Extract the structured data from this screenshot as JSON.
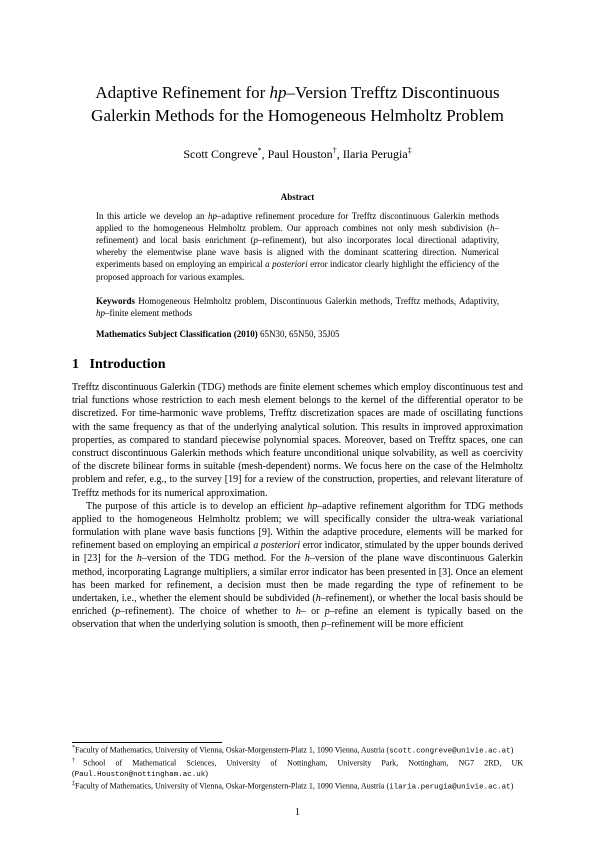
{
  "title_line1_a": "Adaptive Refinement for ",
  "title_line1_b": "hp",
  "title_line1_c": "–Version Trefftz Discontinuous",
  "title_line2": "Galerkin Methods for the Homogeneous Helmholtz Problem",
  "author1": "Scott Congreve",
  "author1_mark": "*",
  "author2": "Paul Houston",
  "author2_mark": "†",
  "author3": "Ilaria Perugia",
  "author3_mark": "‡",
  "abstract_head": "Abstract",
  "abstract_p1_a": "In this article we develop an ",
  "abstract_p1_b": "hp",
  "abstract_p1_c": "–adaptive refinement procedure for Trefftz discontinuous Galerkin methods applied to the homogeneous Helmholtz problem. Our approach combines not only mesh subdivision (",
  "abstract_p1_d": "h",
  "abstract_p1_e": "–refinement) and local basis enrichment (",
  "abstract_p1_f": "p",
  "abstract_p1_g": "–refinement), but also incorporates local directional adaptivity, whereby the elementwise plane wave basis is aligned with the dominant scattering direction. Numerical experiments based on employing an empirical ",
  "abstract_p1_h": "a posteriori",
  "abstract_p1_i": " error indicator clearly highlight the efficiency of the proposed approach for various examples.",
  "keywords_label": "Keywords",
  "keywords_text_a": "   Homogeneous Helmholtz problem, Discontinuous Galerkin methods, Trefftz methods, Adaptivity, ",
  "keywords_text_b": "hp",
  "keywords_text_c": "–finite element methods",
  "msc_label": "Mathematics Subject Classification (2010)",
  "msc_text": "   65N30, 65N50, 35J05",
  "section_num": "1",
  "section_title": "Introduction",
  "body_p1": "Trefftz discontinuous Galerkin (TDG) methods are finite element schemes which employ discontinuous test and trial functions whose restriction to each mesh element belongs to the kernel of the differential operator to be discretized. For time-harmonic wave problems, Trefftz discretization spaces are made of oscillating functions with the same frequency as that of the underlying analytical solution. This results in improved approximation properties, as compared to standard piecewise polynomial spaces. Moreover, based on Trefftz spaces, one can construct discontinuous Galerkin methods which feature unconditional unique solvability, as well as coercivity of the discrete bilinear forms in suitable (mesh-dependent) norms. We focus here on the case of the Helmholtz problem and refer, e.g., to the survey [19] for a review of the construction, properties, and relevant literature of Trefftz methods for its numerical approximation.",
  "body_p2_a": "The purpose of this article is to develop an efficient ",
  "body_p2_b": "hp",
  "body_p2_c": "–adaptive refinement algorithm for TDG methods applied to the homogeneous Helmholtz problem; we will specifically consider the ultra-weak variational formulation with plane wave basis functions [9]. Within the adaptive procedure, elements will be marked for refinement based on employing an empirical ",
  "body_p2_d": "a posteriori",
  "body_p2_e": " error indicator, stimulated by the upper bounds derived in [23] for the ",
  "body_p2_f": "h",
  "body_p2_g": "–version of the TDG method. For the ",
  "body_p2_h": "h",
  "body_p2_i": "–version of the plane wave discontinuous Galerkin method, incorporating Lagrange multipliers, a similar error indicator has been presented in [3]. Once an element has been marked for refinement, a decision must then be made regarding the type of refinement to be undertaken, i.e., whether the element should be subdivided (",
  "body_p2_j": "h",
  "body_p2_k": "–refinement), or whether the local basis should be enriched (",
  "body_p2_l": "p",
  "body_p2_m": "–refinement). The choice of whether to ",
  "body_p2_n": "h",
  "body_p2_o": "– or ",
  "body_p2_p": "p",
  "body_p2_q": "–refine an element is typically based on the observation that when the underlying solution is smooth, then ",
  "body_p2_r": "p",
  "body_p2_s": "–refinement will be more efficient",
  "fn1_mark": "*",
  "fn1_text": "Faculty of Mathematics, University of Vienna, Oskar-Morgenstern-Platz 1, 1090 Vienna, Austria (",
  "fn1_email": "scott.congreve@univie.ac.at",
  "fn1_close": ")",
  "fn2_mark": "†",
  "fn2_text": "School of Mathematical Sciences, University of Nottingham, University Park, Nottingham, NG7 2RD, UK (",
  "fn2_email": "Paul.Houston@nottingham.ac.uk",
  "fn2_close": ")",
  "fn3_mark": "‡",
  "fn3_text": "Faculty of Mathematics, University of Vienna, Oskar-Morgenstern-Platz 1, 1090 Vienna, Austria (",
  "fn3_email": "ilaria.perugia@univie.ac.at",
  "fn3_close": ")",
  "page_number": "1"
}
